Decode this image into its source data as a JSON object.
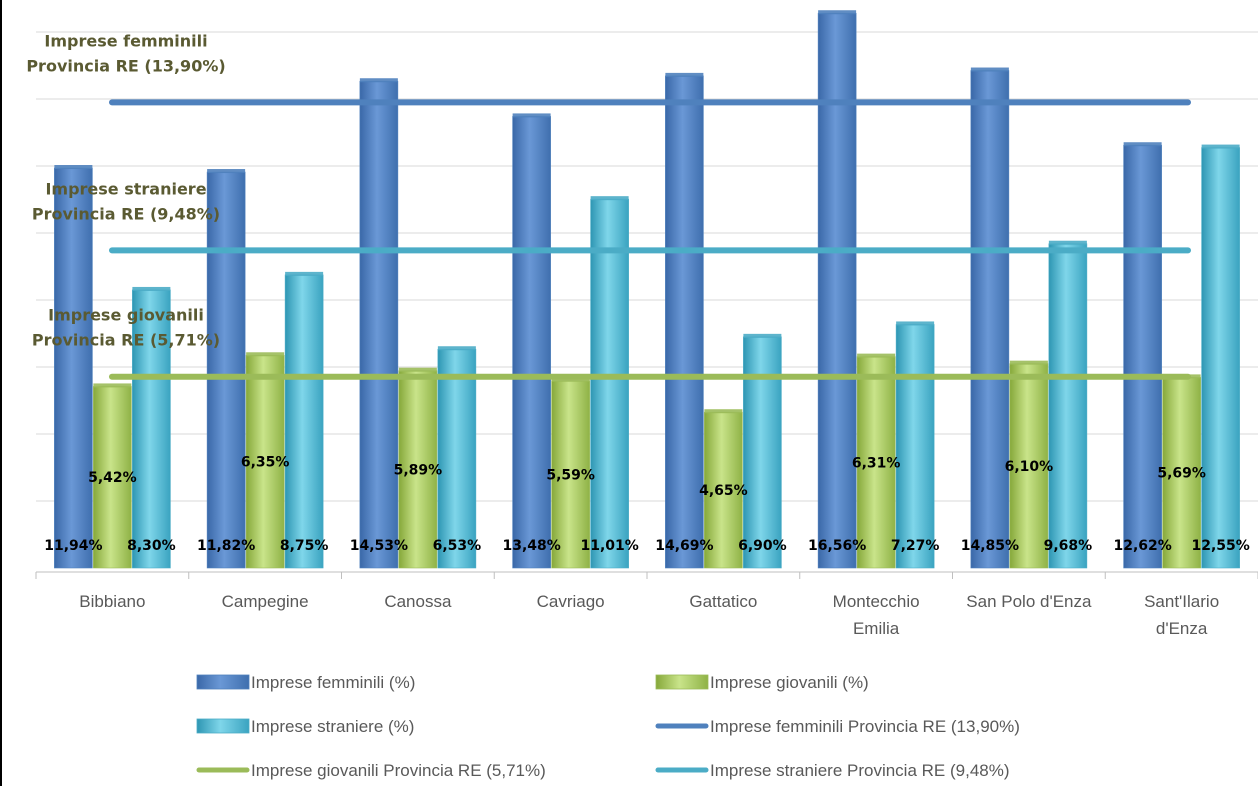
{
  "chart_data": {
    "type": "bar",
    "categories": [
      [
        "Bibbiano"
      ],
      [
        "Campegine"
      ],
      [
        "Canossa"
      ],
      [
        "Cavriago"
      ],
      [
        "Gattatico"
      ],
      [
        "Montecchio",
        "Emilia"
      ],
      [
        "San Polo d'Enza"
      ],
      [
        "Sant'Ilario",
        "d'Enza"
      ]
    ],
    "ylim": [
      0,
      18.0
    ],
    "grid": true,
    "series": [
      {
        "name": "Imprese femminili (%)",
        "color": "#4f81bd",
        "values": [
          11.94,
          11.82,
          14.53,
          13.48,
          14.69,
          16.56,
          14.85,
          12.62
        ],
        "labels": [
          "11,94%",
          "11,82%",
          "14,53%",
          "13,48%",
          "14,69%",
          "16,56%",
          "14,85%",
          "12,62%"
        ]
      },
      {
        "name": "Imprese giovanili (%)",
        "color": "#9bbb59",
        "values": [
          5.42,
          6.35,
          5.89,
          5.59,
          4.65,
          6.31,
          6.1,
          5.69
        ],
        "labels": [
          "5,42%",
          "6,35%",
          "5,89%",
          "5,59%",
          "4,65%",
          "6,31%",
          "6,10%",
          "5,69%"
        ]
      },
      {
        "name": "Imprese straniere (%)",
        "color": "#4bacc6",
        "values": [
          8.3,
          8.75,
          6.53,
          11.01,
          6.9,
          7.27,
          9.68,
          12.55
        ],
        "labels": [
          "8,30%",
          "8,75%",
          "6,53%",
          "11,01%",
          "6,90%",
          "7,27%",
          "9,68%",
          "12,55%"
        ]
      }
    ],
    "reference_lines": [
      {
        "name": "Imprese femminili Provincia RE (13,90%)",
        "value": 13.9,
        "color": "#4f81bd",
        "annotation": [
          "Imprese femminili",
          "Provincia RE (13,90%)"
        ]
      },
      {
        "name": "Imprese straniere Provincia RE (9,48%)",
        "value": 9.48,
        "color": "#4bacc6",
        "annotation": [
          "Imprese straniere",
          "Provincia RE (9,48%)"
        ]
      },
      {
        "name": "Imprese giovanili Provincia RE (5,71%)",
        "value": 5.71,
        "color": "#9bbb59",
        "annotation": [
          "Imprese giovanili",
          "Provincia RE (5,71%)"
        ]
      }
    ],
    "legend": {
      "placement": "bottom",
      "entries": [
        {
          "label": "Imprese femminili (%)",
          "kind": "bar",
          "color": "#4f81bd"
        },
        {
          "label": "Imprese giovanili (%)",
          "kind": "bar",
          "color": "#9bbb59"
        },
        {
          "label": "Imprese straniere (%)",
          "kind": "bar",
          "color": "#4bacc6"
        },
        {
          "label": "Imprese femminili Provincia RE (13,90%)",
          "kind": "line",
          "color": "#4f81bd"
        },
        {
          "label": "Imprese giovanili Provincia RE (5,71%)",
          "kind": "line",
          "color": "#9bbb59"
        },
        {
          "label": "Imprese straniere Provincia RE (9,48%)",
          "kind": "line",
          "color": "#4bacc6"
        }
      ]
    }
  }
}
